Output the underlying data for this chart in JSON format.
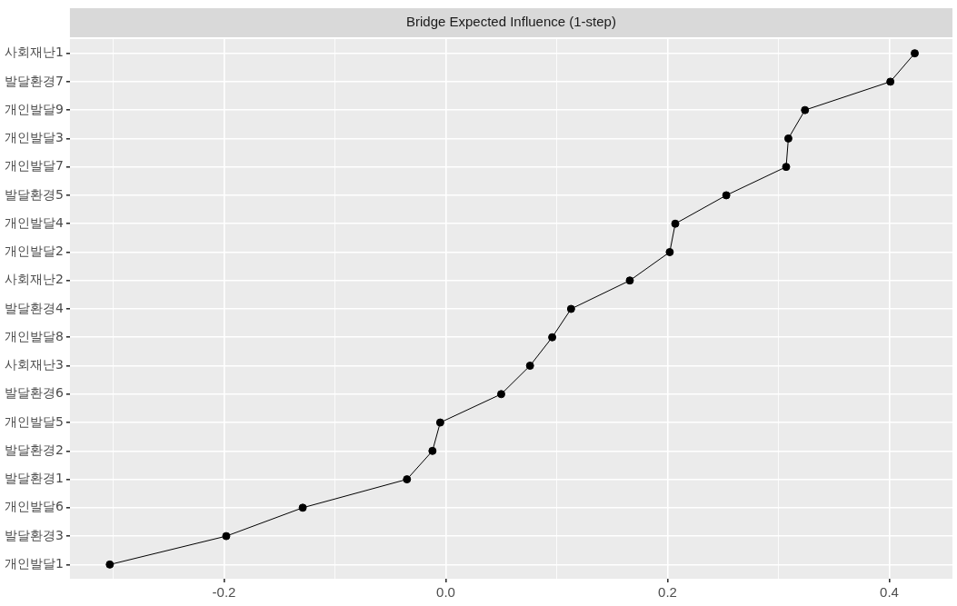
{
  "chart_data": {
    "type": "line",
    "orientation": "horizontal",
    "title": "Bridge Expected Influence (1-step)",
    "categories": [
      "사회재난1",
      "발달환경7",
      "개인발달9",
      "개인발달3",
      "개인발달7",
      "발달환경5",
      "개인발달4",
      "개인발달2",
      "사회재난2",
      "발달환경4",
      "개인발달8",
      "사회재난3",
      "발달환경6",
      "개인발달5",
      "발달환경2",
      "발달환경1",
      "개인발달6",
      "발달환경3",
      "개인발달1"
    ],
    "values": [
      0.423,
      0.401,
      0.324,
      0.309,
      0.307,
      0.253,
      0.207,
      0.202,
      0.166,
      0.113,
      0.096,
      0.076,
      0.05,
      -0.005,
      -0.012,
      -0.035,
      -0.129,
      -0.198,
      -0.303
    ],
    "color": "#000000",
    "xlim": [
      -0.339,
      0.457
    ],
    "xticks": [
      {
        "value": -0.3,
        "label": null
      },
      -0.2,
      {
        "value": -0.1,
        "label": null
      },
      {
        "value": 0,
        "label": "0.0"
      },
      {
        "value": 0.1,
        "label": null
      },
      0.2,
      {
        "value": 0.3,
        "label": null
      },
      0.4
    ],
    "grid": true,
    "legend": false,
    "marker": "circle",
    "line_style": "solid"
  }
}
